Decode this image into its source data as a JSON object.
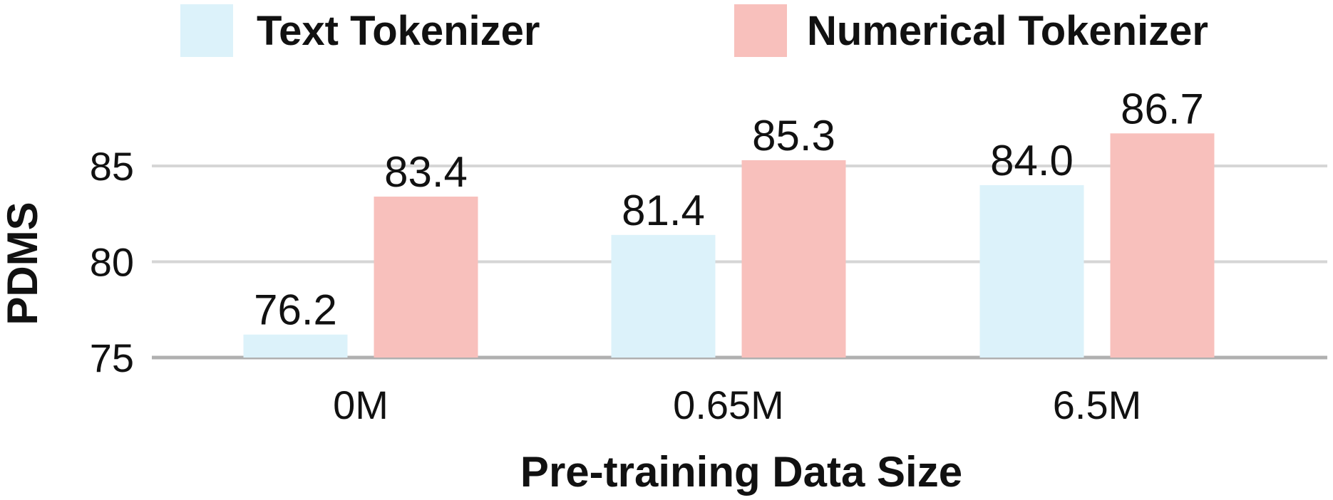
{
  "chart_data": {
    "type": "bar",
    "categories": [
      "0M",
      "0.65M",
      "6.5M"
    ],
    "series": [
      {
        "name": "Text Tokenizer",
        "values": [
          76.2,
          81.4,
          84.0
        ],
        "color": "#dcf2fa"
      },
      {
        "name": "Numerical Tokenizer",
        "values": [
          83.4,
          85.3,
          86.7
        ],
        "color": "#f8c0bc"
      }
    ],
    "data_labels": [
      [
        "76.2",
        "81.4",
        "84.0"
      ],
      [
        "83.4",
        "85.3",
        "86.7"
      ]
    ],
    "xlabel": "Pre-training Data Size",
    "ylabel": "PDMS",
    "ylim": [
      75,
      88.5
    ],
    "yticks": [
      75,
      80,
      85
    ],
    "ytick_labels": [
      "75",
      "80",
      "85"
    ],
    "grid": true,
    "legend_position": "top"
  }
}
